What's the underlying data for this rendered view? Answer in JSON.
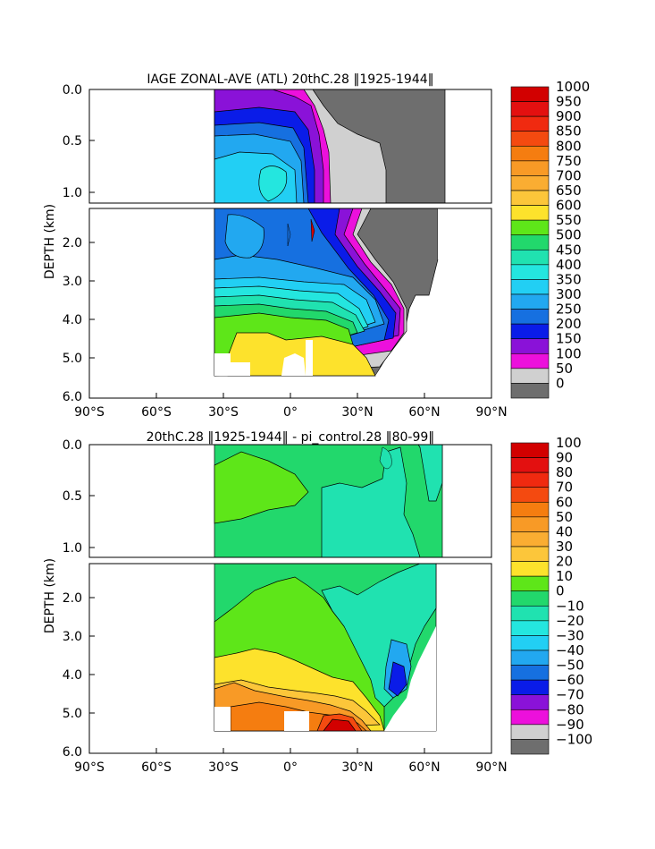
{
  "chart_data": [
    {
      "type": "heatmap",
      "title": "IAGE ZONAL-AVE (ATL) 20thC.28 ‖1925-1944‖",
      "ylabel": "DEPTH (km)",
      "x_ticks": [
        "90°S",
        "60°S",
        "30°S",
        "0°",
        "30°N",
        "60°N",
        "90°N"
      ],
      "x_values": [
        -90,
        -60,
        -30,
        0,
        30,
        60,
        90
      ],
      "upper_y_ticks": [
        "0.0",
        "0.5",
        "1.0"
      ],
      "upper_y_values": [
        0.0,
        0.5,
        1.0
      ],
      "lower_y_ticks": [
        "2.0",
        "3.0",
        "4.0",
        "5.0",
        "6.0"
      ],
      "lower_y_values": [
        2.0,
        3.0,
        4.0,
        5.0,
        6.0
      ],
      "ylim_upper": [
        0.0,
        1.1
      ],
      "ylim_lower": [
        1.15,
        6.0
      ],
      "colorbar_labels": [
        "1000",
        "950",
        "900",
        "850",
        "800",
        "750",
        "700",
        "650",
        "600",
        "550",
        "500",
        "450",
        "400",
        "350",
        "300",
        "250",
        "200",
        "150",
        "100",
        "50",
        "0"
      ],
      "colorbar_colors": [
        "#d20000",
        "#e31010",
        "#f02a10",
        "#f44a10",
        "#f57d10",
        "#f89a26",
        "#faad32",
        "#fcc63a",
        "#fde22c",
        "#5ee619",
        "#22d86c",
        "#20e2b0",
        "#24e6df",
        "#22cff4",
        "#22a8f0",
        "#1670e0",
        "#0a1ce8",
        "#8a12d8",
        "#ec10dc",
        "#d0d0d0",
        "#6e6e6e"
      ]
    },
    {
      "type": "heatmap",
      "title": "20thC.28 ‖1925-1944‖ - pi_control.28 ‖80-99‖",
      "ylabel": "DEPTH (km)",
      "x_ticks": [
        "90°S",
        "60°S",
        "30°S",
        "0°",
        "30°N",
        "60°N",
        "90°N"
      ],
      "x_values": [
        -90,
        -60,
        -30,
        0,
        30,
        60,
        90
      ],
      "upper_y_ticks": [
        "0.0",
        "0.5",
        "1.0"
      ],
      "upper_y_values": [
        0.0,
        0.5,
        1.0
      ],
      "lower_y_ticks": [
        "2.0",
        "3.0",
        "4.0",
        "5.0",
        "6.0"
      ],
      "lower_y_values": [
        2.0,
        3.0,
        4.0,
        5.0,
        6.0
      ],
      "ylim_upper": [
        0.0,
        1.1
      ],
      "ylim_lower": [
        1.15,
        6.0
      ],
      "colorbar_labels": [
        "100",
        "90",
        "80",
        "70",
        "60",
        "50",
        "40",
        "30",
        "20",
        "10",
        "0",
        "−10",
        "−20",
        "−30",
        "−40",
        "−50",
        "−60",
        "−70",
        "−80",
        "−90",
        "−100"
      ],
      "colorbar_colors": [
        "#d20000",
        "#e31010",
        "#f02a10",
        "#f44a10",
        "#f57d10",
        "#f89a26",
        "#faad32",
        "#fcc63a",
        "#fde22c",
        "#5ee619",
        "#22d86c",
        "#20e2b0",
        "#24e6df",
        "#22cff4",
        "#22a8f0",
        "#1670e0",
        "#0a1ce8",
        "#8a12d8",
        "#ec10dc",
        "#d0d0d0",
        "#6e6e6e"
      ]
    }
  ]
}
